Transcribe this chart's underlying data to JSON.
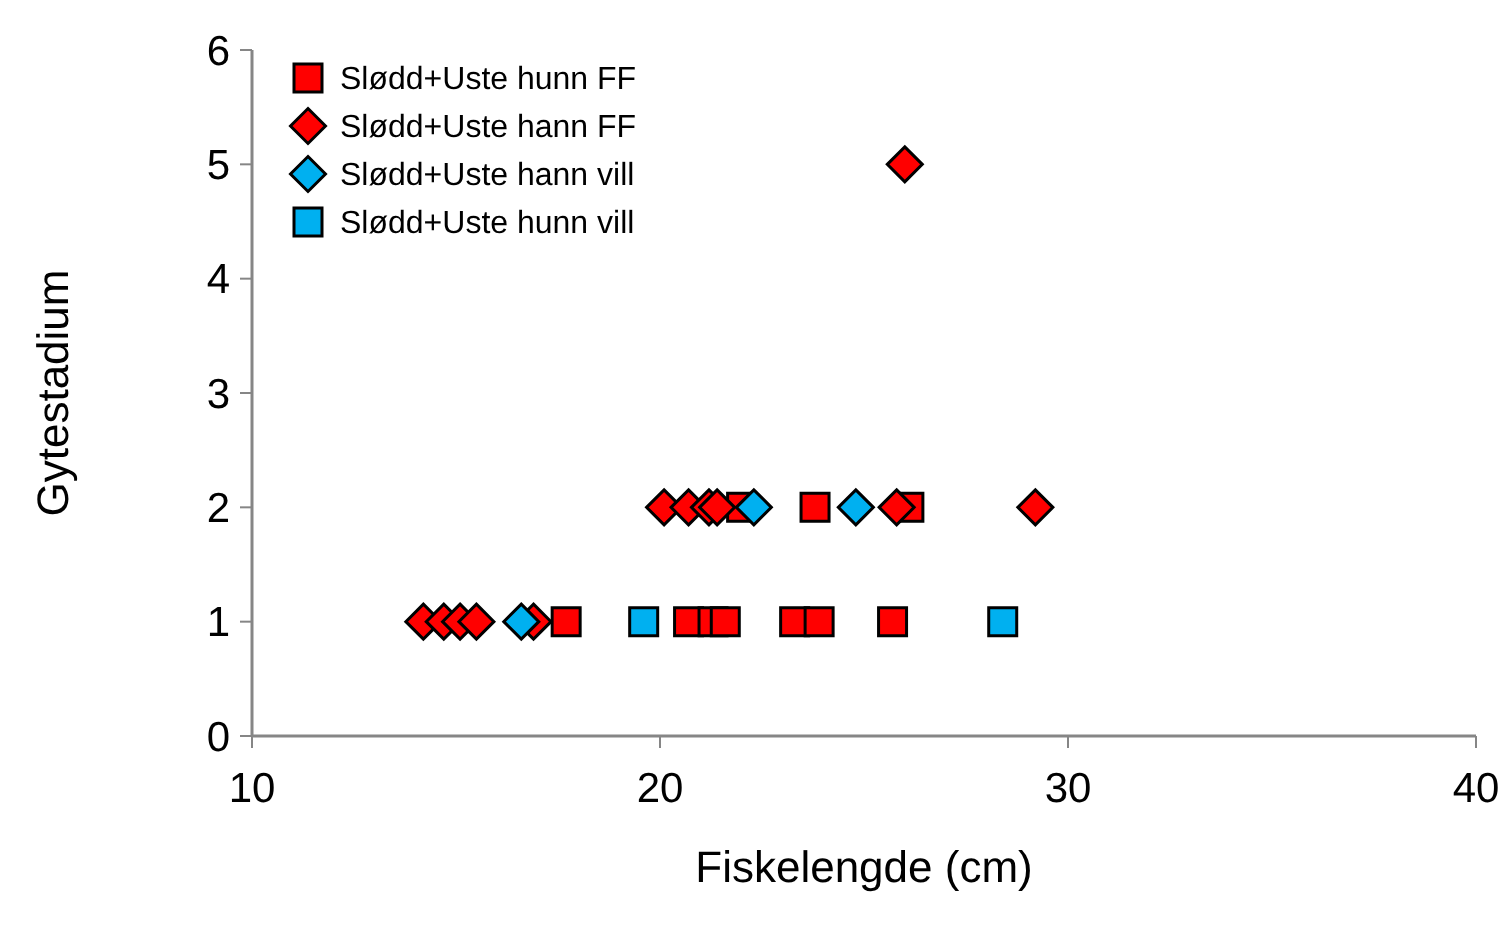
{
  "chart_data": {
    "type": "scatter",
    "xlabel": "Fiskelengde (cm)",
    "ylabel": "Gytestadium",
    "xlim": [
      10,
      40
    ],
    "xticks": [
      10,
      20,
      30,
      40
    ],
    "ylim": [
      0,
      6
    ],
    "yticks": [
      0,
      1,
      2,
      3,
      4,
      5,
      6
    ],
    "grid": false,
    "legend": "top left",
    "series": [
      {
        "name": "Slødd+Uste hunn FF",
        "color": "#ff0000",
        "marker": "square",
        "x": [
          17.7,
          20.7,
          21.3,
          21.6,
          23.3,
          23.9,
          25.7,
          22.0,
          23.8,
          26.1
        ],
        "values": [
          1,
          1,
          1,
          1,
          1,
          1,
          1,
          2,
          2,
          2
        ]
      },
      {
        "name": "Slødd+Uste hann FF",
        "color": "#ff0000",
        "marker": "diamond",
        "x": [
          14.2,
          14.7,
          15.1,
          15.5,
          16.9,
          20.1,
          20.7,
          21.2,
          21.4,
          25.8,
          29.2,
          26.0
        ],
        "values": [
          1,
          1,
          1,
          1,
          1,
          2,
          2,
          2,
          2,
          2,
          2,
          5
        ]
      },
      {
        "name": "Slødd+Uste hann vill",
        "color": "#00b0f0",
        "marker": "diamond",
        "x": [
          16.6,
          22.3,
          24.8
        ],
        "values": [
          1,
          2,
          2
        ]
      },
      {
        "name": "Slødd+Uste hunn vill",
        "color": "#00b0f0",
        "marker": "square",
        "x": [
          19.6,
          28.4
        ],
        "values": [
          1,
          1
        ]
      }
    ]
  }
}
